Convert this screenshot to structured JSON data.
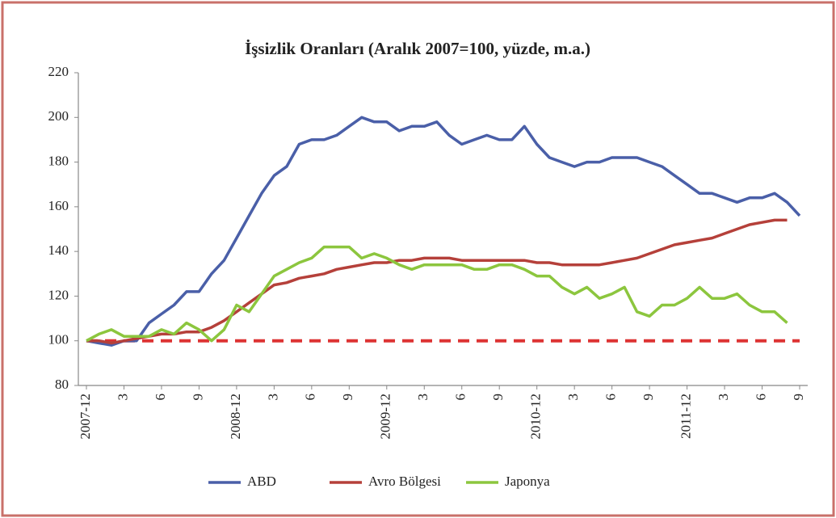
{
  "chart_data": {
    "type": "line",
    "title": "İşsizlik Oranları (Aralık  2007=100, yüzde, m.a.)",
    "title_color": "#cc2229",
    "categories": [
      "2007-12",
      null,
      null,
      "3",
      null,
      null,
      "6",
      null,
      null,
      "9",
      null,
      null,
      "2008-12",
      null,
      null,
      "3",
      null,
      null,
      "6",
      null,
      null,
      "9",
      null,
      null,
      "2009-12",
      null,
      null,
      "3",
      null,
      null,
      "6",
      null,
      null,
      "9",
      null,
      null,
      "2010-12",
      null,
      null,
      "3",
      null,
      null,
      "6",
      null,
      null,
      "9",
      null,
      null,
      "2011-12",
      null,
      null,
      "3",
      null,
      null,
      "6",
      null,
      null,
      "9"
    ],
    "series": [
      {
        "name": "ABD",
        "color": "#4a5fa8",
        "values": [
          100,
          99,
          98,
          100,
          100,
          108,
          112,
          116,
          122,
          122,
          130,
          136,
          146,
          156,
          166,
          174,
          178,
          188,
          190,
          190,
          192,
          196,
          200,
          198,
          198,
          194,
          196,
          196,
          198,
          192,
          188,
          190,
          192,
          190,
          190,
          196,
          188,
          182,
          180,
          178,
          180,
          180,
          182,
          182,
          182,
          180,
          178,
          174,
          170,
          166,
          166,
          164,
          162,
          164,
          164,
          166,
          162,
          156
        ]
      },
      {
        "name": "Avro Bölgesi",
        "color": "#b5403a",
        "values": [
          100,
          100,
          99,
          100,
          101,
          102,
          103,
          103,
          104,
          104,
          106,
          109,
          113,
          117,
          121,
          125,
          126,
          128,
          129,
          130,
          132,
          133,
          134,
          135,
          135,
          136,
          136,
          137,
          137,
          137,
          136,
          136,
          136,
          136,
          136,
          136,
          135,
          135,
          134,
          134,
          134,
          134,
          135,
          136,
          137,
          139,
          141,
          143,
          144,
          145,
          146,
          148,
          150,
          152,
          153,
          154,
          154,
          null
        ]
      },
      {
        "name": "Japonya",
        "color": "#8cc63e",
        "values": [
          100,
          103,
          105,
          102,
          102,
          102,
          105,
          103,
          108,
          105,
          100,
          105,
          116,
          113,
          121,
          129,
          132,
          135,
          137,
          142,
          142,
          142,
          137,
          139,
          137,
          134,
          132,
          134,
          134,
          134,
          134,
          132,
          132,
          134,
          134,
          132,
          129,
          129,
          124,
          121,
          124,
          119,
          121,
          124,
          113,
          111,
          116,
          116,
          119,
          124,
          119,
          119,
          121,
          116,
          113,
          113,
          108,
          null
        ]
      }
    ],
    "reference_line": {
      "value": 100,
      "color": "#dd3333",
      "dashed": true
    },
    "ylim": [
      80,
      220
    ],
    "yticks": [
      80,
      100,
      120,
      140,
      160,
      180,
      200,
      220
    ],
    "grid": false,
    "legend": "bottom"
  }
}
